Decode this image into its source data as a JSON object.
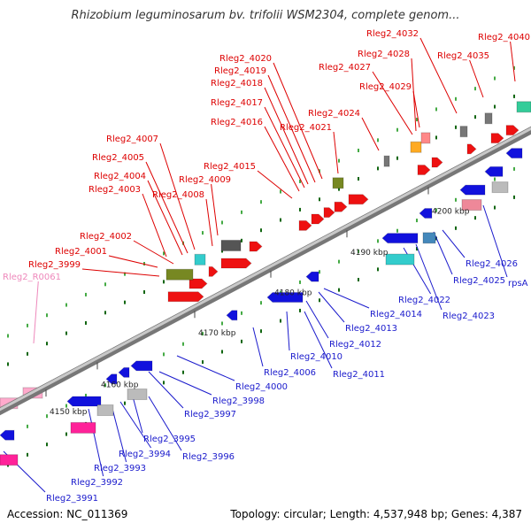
{
  "title": "Rhizobium leguminosarum bv. trifolii WSM2304, complete genom...",
  "footer": {
    "accession": "Accession: NC_011369",
    "summary": "Topology: circular; Length: 4,537,948 bp; Genes: 4,387"
  },
  "colors": {
    "forward_label": "#dd0000",
    "reverse_label": "#1a1acc",
    "rna_label": "#ee88bb",
    "backbone": "#999999"
  },
  "ticks": [
    "4150 kbp",
    "4160 kbp",
    "4170 kbp",
    "4180 kbp",
    "4190 kbp",
    "4200 kbp"
  ],
  "genes": [
    {
      "label": "Rleg2_R0061",
      "strand": "rna"
    },
    {
      "label": "Rleg2_3991",
      "strand": "reverse"
    },
    {
      "label": "Rleg2_3992",
      "strand": "reverse"
    },
    {
      "label": "Rleg2_3993",
      "strand": "reverse"
    },
    {
      "label": "Rleg2_3994",
      "strand": "reverse"
    },
    {
      "label": "Rleg2_3995",
      "strand": "reverse"
    },
    {
      "label": "Rleg2_3996",
      "strand": "reverse"
    },
    {
      "label": "Rleg2_3997",
      "strand": "reverse"
    },
    {
      "label": "Rleg2_3998",
      "strand": "reverse"
    },
    {
      "label": "Rleg2_3999",
      "strand": "forward"
    },
    {
      "label": "Rleg2_4000",
      "strand": "reverse"
    },
    {
      "label": "Rleg2_4001",
      "strand": "forward"
    },
    {
      "label": "Rleg2_4002",
      "strand": "forward"
    },
    {
      "label": "Rleg2_4003",
      "strand": "forward"
    },
    {
      "label": "Rleg2_4004",
      "strand": "forward"
    },
    {
      "label": "Rleg2_4005",
      "strand": "forward"
    },
    {
      "label": "Rleg2_4006",
      "strand": "reverse"
    },
    {
      "label": "Rleg2_4007",
      "strand": "forward"
    },
    {
      "label": "Rleg2_4008",
      "strand": "forward"
    },
    {
      "label": "Rleg2_4009",
      "strand": "forward"
    },
    {
      "label": "Rleg2_4010",
      "strand": "reverse"
    },
    {
      "label": "Rleg2_4011",
      "strand": "reverse"
    },
    {
      "label": "Rleg2_4012",
      "strand": "reverse"
    },
    {
      "label": "Rleg2_4013",
      "strand": "reverse"
    },
    {
      "label": "Rleg2_4014",
      "strand": "reverse"
    },
    {
      "label": "Rleg2_4015",
      "strand": "forward"
    },
    {
      "label": "Rleg2_4016",
      "strand": "forward"
    },
    {
      "label": "Rleg2_4017",
      "strand": "forward"
    },
    {
      "label": "Rleg2_4018",
      "strand": "forward"
    },
    {
      "label": "Rleg2_4019",
      "strand": "forward"
    },
    {
      "label": "Rleg2_4020",
      "strand": "forward"
    },
    {
      "label": "Rleg2_4021",
      "strand": "forward"
    },
    {
      "label": "Rleg2_4022",
      "strand": "reverse"
    },
    {
      "label": "Rleg2_4023",
      "strand": "reverse"
    },
    {
      "label": "Rleg2_4024",
      "strand": "forward"
    },
    {
      "label": "Rleg2_4025",
      "strand": "reverse"
    },
    {
      "label": "Rleg2_4026",
      "strand": "reverse"
    },
    {
      "label": "rpsA",
      "strand": "reverse"
    },
    {
      "label": "Rleg2_4027",
      "strand": "forward"
    },
    {
      "label": "Rleg2_4028",
      "strand": "forward"
    },
    {
      "label": "Rleg2_4029",
      "strand": "forward"
    },
    {
      "label": "Rleg2_4032",
      "strand": "forward"
    },
    {
      "label": "Rleg2_4035",
      "strand": "forward"
    },
    {
      "label": "Rleg2_4040",
      "strand": "forward"
    }
  ]
}
